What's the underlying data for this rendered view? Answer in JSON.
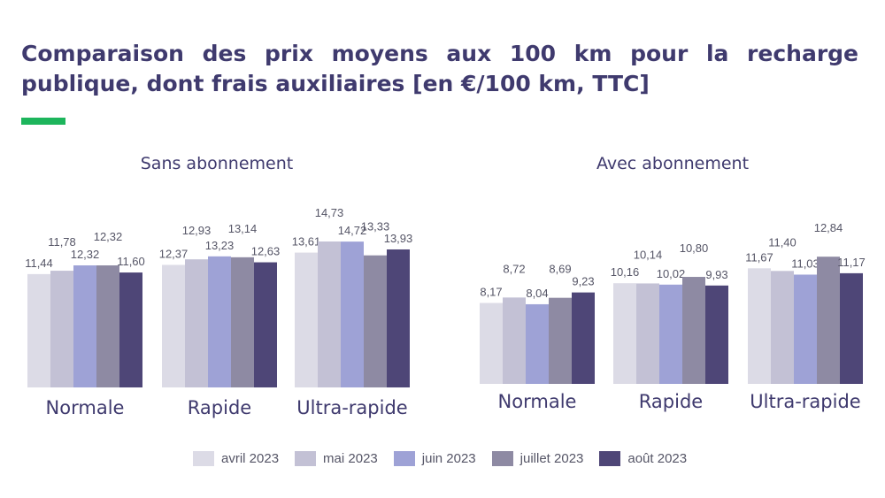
{
  "title": "Comparaison des prix moyens aux 100 km pour la recharge publique, dont frais auxiliaires [en €/100 km, TTC]",
  "accent_color": "#1db55c",
  "series_colors": [
    "#dcdbe6",
    "#c3c1d5",
    "#9ea2d6",
    "#8e8aa3",
    "#4e4677"
  ],
  "chart_data": [
    {
      "type": "bar",
      "title": "Sans abonnement",
      "categories": [
        "Normale",
        "Rapide",
        "Ultra-rapide"
      ],
      "series": [
        {
          "name": "avril 2023",
          "values": [
            11.44,
            12.37,
            13.61
          ],
          "labels": [
            "11,44",
            "12,37",
            "13,61"
          ]
        },
        {
          "name": "mai 2023",
          "values": [
            11.78,
            12.93,
            14.73
          ],
          "labels": [
            "11,78",
            "12,93",
            "14,73"
          ]
        },
        {
          "name": "juin 2023",
          "values": [
            12.32,
            13.23,
            14.72
          ],
          "labels": [
            "12,32",
            "13,23",
            "14,72"
          ]
        },
        {
          "name": "juillet 2023",
          "values": [
            12.32,
            13.14,
            13.33
          ],
          "labels": [
            "12,32",
            "13,14",
            "13,33"
          ]
        },
        {
          "name": "août 2023",
          "values": [
            11.6,
            12.63,
            13.93
          ],
          "labels": [
            "11,60",
            "12,63",
            "13,93"
          ]
        }
      ]
    },
    {
      "type": "bar",
      "title": "Avec abonnement",
      "categories": [
        "Normale",
        "Rapide",
        "Ultra-rapide"
      ],
      "series": [
        {
          "name": "avril 2023",
          "values": [
            8.17,
            10.16,
            11.67
          ],
          "labels": [
            "8,17",
            "10,16",
            "11,67"
          ]
        },
        {
          "name": "mai 2023",
          "values": [
            8.72,
            10.14,
            11.4
          ],
          "labels": [
            "8,72",
            "10,14",
            "11,40"
          ]
        },
        {
          "name": "juin 2023",
          "values": [
            8.04,
            10.02,
            11.03
          ],
          "labels": [
            "8,04",
            "10,02",
            "11,03"
          ]
        },
        {
          "name": "juillet 2023",
          "values": [
            8.69,
            10.8,
            12.84
          ],
          "labels": [
            "8,69",
            "10,80",
            "12,84"
          ]
        },
        {
          "name": "août 2023",
          "values": [
            9.23,
            9.93,
            11.17
          ],
          "labels": [
            "9,23",
            "9,93",
            "11,17"
          ]
        }
      ]
    }
  ],
  "legend": [
    "avril 2023",
    "mai 2023",
    "juin 2023",
    "juillet 2023",
    "août 2023"
  ]
}
